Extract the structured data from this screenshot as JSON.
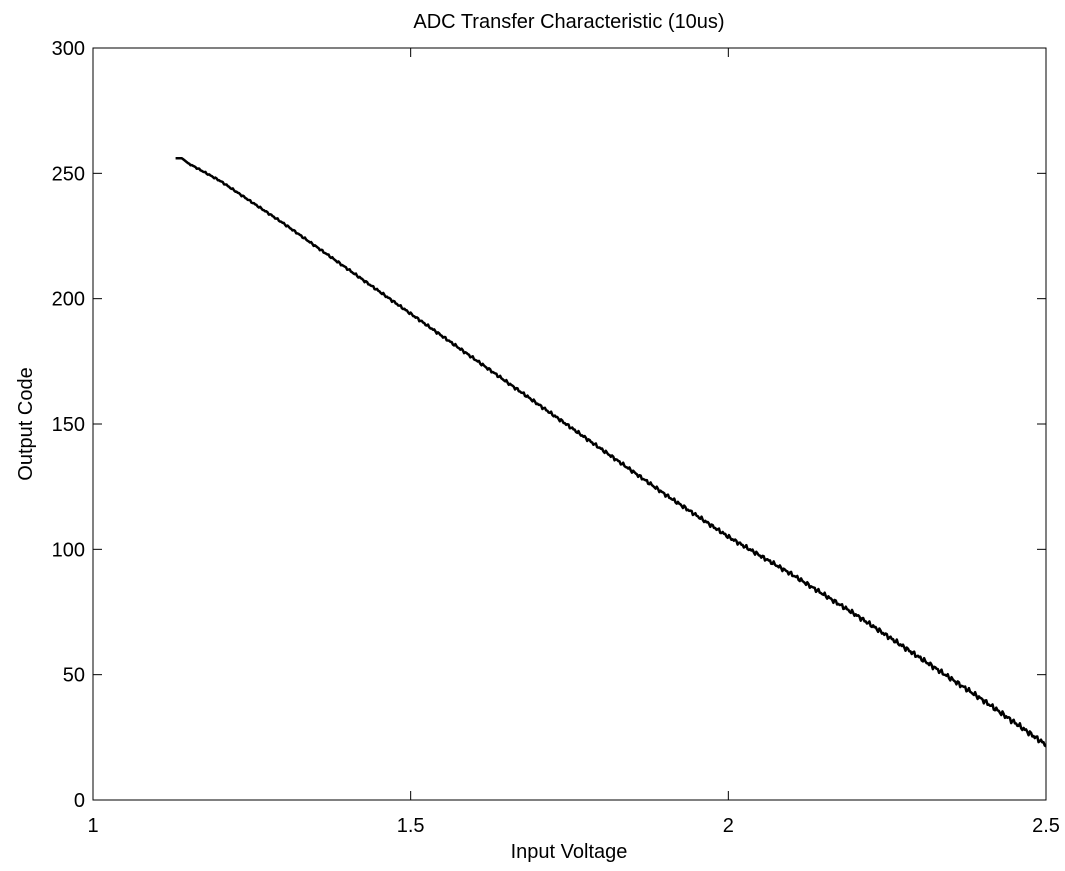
{
  "chart_data": {
    "type": "line",
    "title": "ADC Transfer Characteristic (10us)",
    "xlabel": "Input Voltage",
    "ylabel": "Output Code",
    "xlim": [
      1,
      2.5
    ],
    "ylim": [
      0,
      300
    ],
    "xticks": [
      1,
      1.5,
      2,
      2.5
    ],
    "xtick_labels": [
      "1",
      "1.5",
      "2",
      "2.5"
    ],
    "yticks": [
      0,
      50,
      100,
      150,
      200,
      250,
      300
    ],
    "ytick_labels": [
      "0",
      "50",
      "100",
      "150",
      "200",
      "250",
      "300"
    ],
    "grid": false,
    "legend": "none",
    "series": [
      {
        "color": "#000000",
        "x": [
          1.13,
          1.14,
          1.15,
          1.2,
          1.3,
          1.4,
          1.5,
          1.6,
          1.7,
          1.8,
          1.9,
          2.0,
          2.1,
          2.2,
          2.3,
          2.4,
          2.5
        ],
        "y": [
          256,
          256,
          254,
          247,
          230,
          212,
          194,
          176,
          158,
          140,
          122,
          105,
          90,
          74,
          57,
          40,
          22
        ]
      }
    ]
  }
}
